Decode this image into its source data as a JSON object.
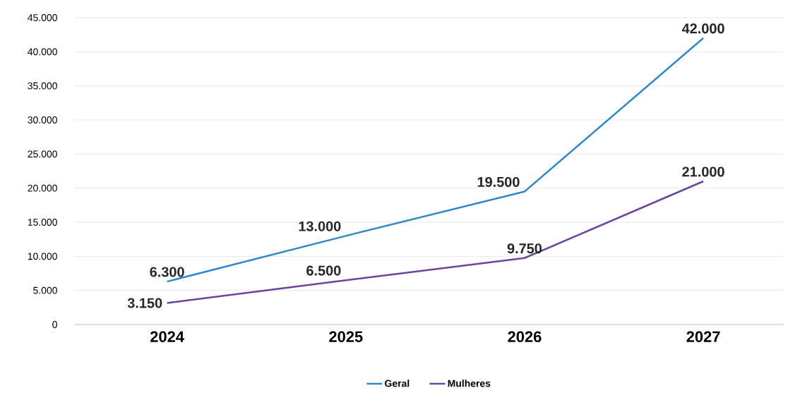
{
  "chart_data": {
    "type": "line",
    "categories": [
      "2024",
      "2025",
      "2026",
      "2027"
    ],
    "series": [
      {
        "name": "Geral",
        "color": "#2e88cc",
        "values": [
          6300,
          13000,
          19500,
          42000
        ],
        "value_labels": [
          "6.300",
          "13.000",
          "19.500",
          "42.000"
        ]
      },
      {
        "name": "Mulheres",
        "color": "#6a449e",
        "values": [
          3150,
          6500,
          9750,
          21000
        ],
        "value_labels": [
          "3.150",
          "6.500",
          "9.750",
          "21.000"
        ]
      }
    ],
    "ylim": [
      0,
      45000
    ],
    "yticks": [
      0,
      {
        "value": 5000,
        "label": "5.000"
      },
      {
        "value": 10000,
        "label": "10.000"
      },
      {
        "value": 15000,
        "label": "15.000"
      },
      {
        "value": 20000,
        "label": "20.000"
      },
      {
        "value": 25000,
        "label": "25.000"
      },
      {
        "value": 30000,
        "label": "30.000"
      },
      {
        "value": 35000,
        "label": "35.000"
      },
      {
        "value": 40000,
        "label": "40.000"
      },
      {
        "value": 45000,
        "label": "45.000"
      }
    ],
    "grid": "y",
    "legend": "bottom",
    "marker": "none",
    "line_style": "solid"
  }
}
